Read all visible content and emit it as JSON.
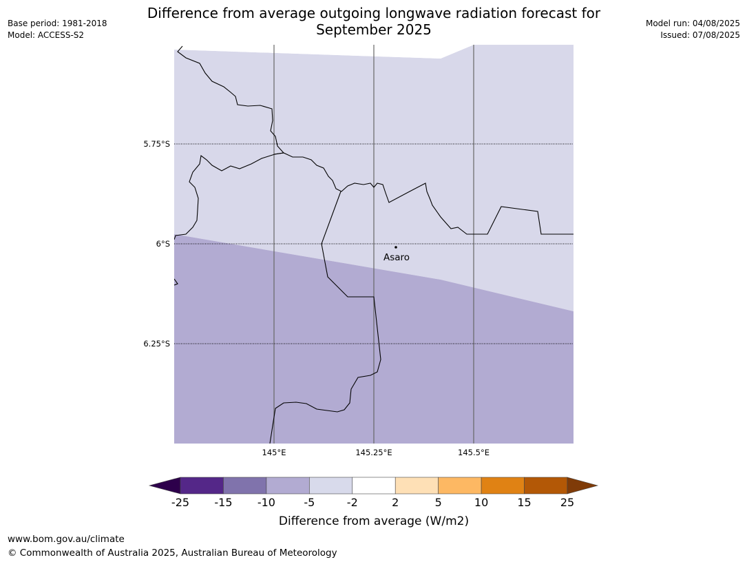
{
  "header": {
    "title_line1": "Difference from average outgoing longwave radiation forecast for",
    "title_line2": "September 2025",
    "base_period": "Base period: 1981-2018",
    "model": "Model: ACCESS-S2",
    "model_run": "Model run: 04/08/2025",
    "issued": "Issued: 07/08/2025"
  },
  "map": {
    "lat_ticks": [
      "5.75°S",
      "6°S",
      "6.25°S"
    ],
    "lon_ticks": [
      "145°E",
      "145.25°E",
      "145.5°E"
    ],
    "place_label": "Asaro",
    "region_colors": {
      "minus5_to_minus2": "#d8d8ea",
      "minus10_to_minus5": "#b2abd2"
    }
  },
  "colorbar": {
    "title": "Difference from average (W/m2)",
    "ticks": [
      "-25",
      "-15",
      "-10",
      "-5",
      "-2",
      "2",
      "5",
      "10",
      "15",
      "25"
    ],
    "colors": [
      "#2d004b",
      "#542788",
      "#8073ac",
      "#b2abd2",
      "#d8daeb",
      "#ffffff",
      "#fee0b6",
      "#fdb863",
      "#e08214",
      "#b35806",
      "#7f3b08"
    ]
  },
  "footer": {
    "url": "www.bom.gov.au/climate",
    "copyright": "© Commonwealth of Australia 2025, Australian Bureau of Meteorology"
  }
}
